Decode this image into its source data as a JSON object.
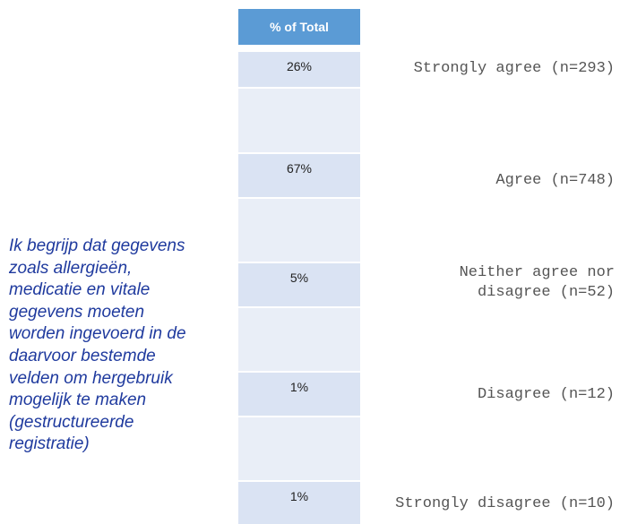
{
  "header": "% of Total",
  "question": [
    "Ik begrijp dat gegevens",
    "zoals allergieën,",
    "medicatie en vitale",
    "gegevens moeten",
    "worden ingevoerd in de",
    "daarvoor bestemde",
    "velden om hergebruik",
    "mogelijk te maken",
    "(gestructureerde",
    "registratie)"
  ],
  "rows": [
    {
      "value": "26%",
      "label": "Strongly agree (n=293)"
    },
    {
      "value": "67%",
      "label": "Agree (n=748)"
    },
    {
      "value": "5%",
      "label": "Neither agree nor disagree (n=52)"
    },
    {
      "value": "1%",
      "label": "Disagree (n=12)"
    },
    {
      "value": "1%",
      "label": "Strongly disagree (n=10)"
    }
  ]
}
